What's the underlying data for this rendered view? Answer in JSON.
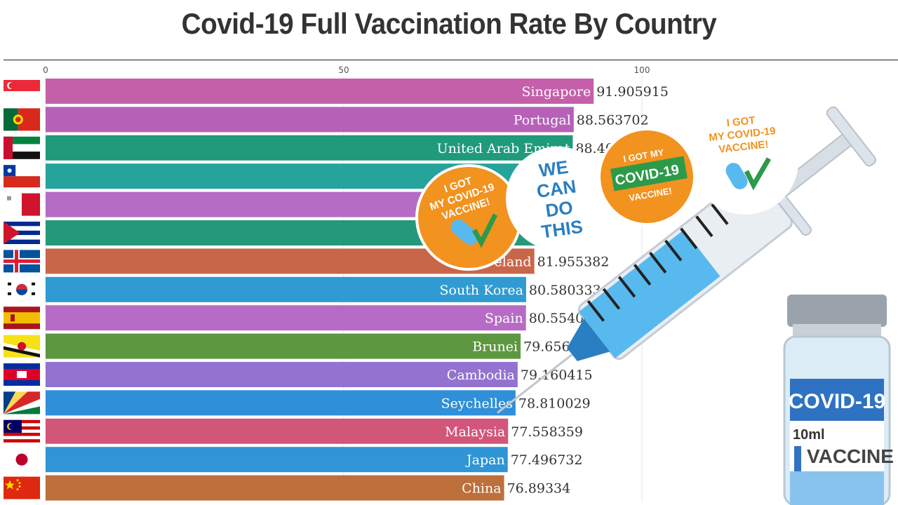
{
  "title": "Covid-19 Full Vaccination Rate By Country",
  "chart_data": {
    "type": "bar",
    "orientation": "horizontal",
    "title": "Covid-19 Full Vaccination Rate By Country",
    "xlim": [
      0,
      100
    ],
    "x_ticks": [
      0,
      50,
      100
    ],
    "grid": true,
    "categories": [
      "Singapore",
      "Portugal",
      "United Arab Emirates",
      "Chile",
      "Malta",
      "Cuba",
      "Iceland",
      "South Korea",
      "Spain",
      "Brunei",
      "Cambodia",
      "Seychelles",
      "Malaysia",
      "Japan",
      "China"
    ],
    "values": [
      91.905915,
      88.563702,
      88.4,
      86.8,
      86.4,
      85.3,
      81.955382,
      80.580333,
      80.554027,
      79.656514,
      79.160415,
      78.810029,
      77.558359,
      77.496732,
      76.89334
    ],
    "value_labels": [
      "91.905915",
      "88.563702",
      "88.40",
      "",
      "",
      "",
      "81.955382",
      "80.580333",
      "80.554027",
      "79.656514",
      "79.160415",
      "78.810029",
      "77.558359",
      "77.496732",
      "76.89334"
    ],
    "bar_labels": [
      "Singapore",
      "Portugal",
      "United Arab Emirat",
      "",
      "",
      "",
      "eland",
      "South Korea",
      "Spain",
      "Brunei",
      "Cambodia",
      "Seychelles",
      "Malaysia",
      "Japan",
      "China"
    ],
    "colors": [
      "#c460a9",
      "#b660b8",
      "#1f9a7a",
      "#26a39a",
      "#b46cc4",
      "#23997a",
      "#c8664a",
      "#2f9bd2",
      "#b66cc4",
      "#5d9740",
      "#9372d0",
      "#2f8fd8",
      "#d2567a",
      "#2f95d6",
      "#bd6f3c"
    ],
    "flags": [
      "singapore-flag",
      "portugal-flag",
      "uae-flag",
      "chile-flag",
      "malta-flag",
      "cuba-flag",
      "iceland-flag",
      "south-korea-flag",
      "spain-flag",
      "brunei-flag",
      "cambodia-flag",
      "seychelles-flag",
      "malaysia-flag",
      "japan-flag",
      "china-flag"
    ]
  },
  "overlay": {
    "sticker_1": [
      "I GOT",
      "MY COVID-19",
      "VACCINE!"
    ],
    "sticker_2": [
      "WE",
      "CAN",
      "DO",
      "THIS"
    ],
    "sticker_3": [
      "I GOT MY",
      "COVID-19",
      "VACCINE!"
    ],
    "sticker_4": [
      "I GOT",
      "MY COVID-19",
      "VACCINE!"
    ],
    "vial": [
      "COVID-19",
      "10ml",
      "VACCINE"
    ],
    "colors": {
      "orange": "#f2921f",
      "green": "#2d9a4a",
      "blue": "#2a7fc2",
      "navy": "#1f4e8c"
    }
  }
}
